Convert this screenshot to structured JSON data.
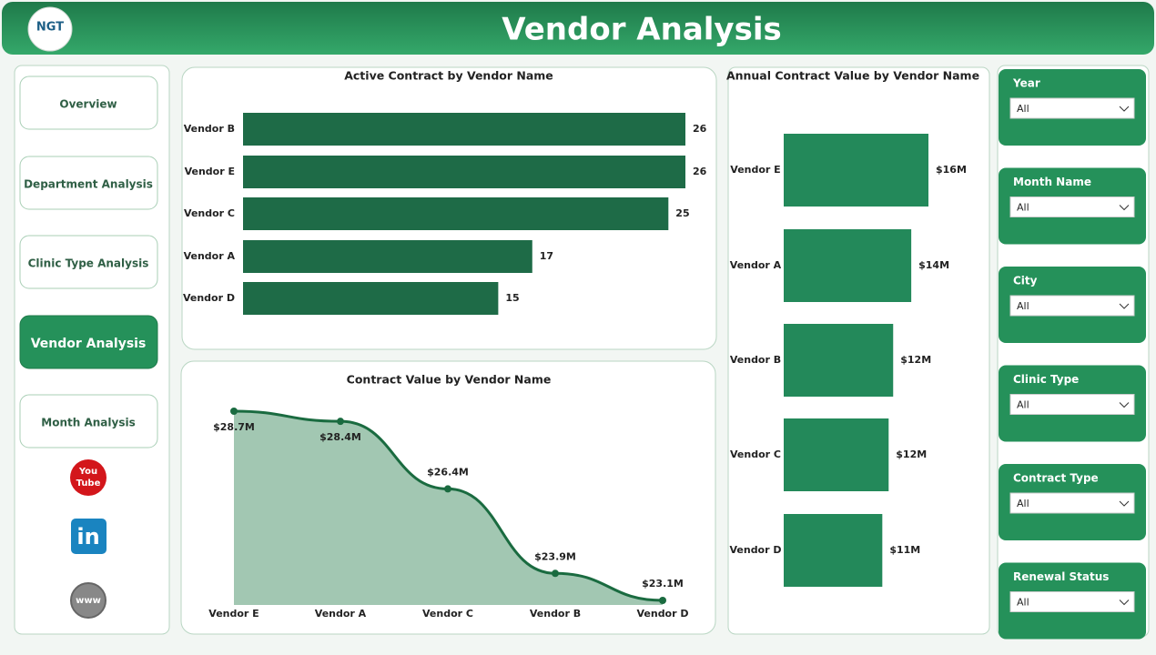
{
  "header": {
    "logo": "NGT",
    "title": "Vendor Analysis"
  },
  "nav": {
    "items": [
      "Overview",
      "Department Analysis",
      "Clinic Type Analysis",
      "Vendor Analysis",
      "Month Analysis"
    ],
    "active": 3,
    "youtube": [
      "You",
      "Tube"
    ],
    "linkedin": "in",
    "web": "www"
  },
  "filters": [
    {
      "label": "Year",
      "value": "All"
    },
    {
      "label": "Month Name",
      "value": "All"
    },
    {
      "label": "City",
      "value": "All"
    },
    {
      "label": "Clinic Type",
      "value": "All"
    },
    {
      "label": "Contract Type",
      "value": "All"
    },
    {
      "label": "Renewal Status",
      "value": "All"
    }
  ],
  "chart_data": [
    {
      "type": "hbar",
      "title": "Active Contract by Vendor Name",
      "categories": [
        "Vendor B",
        "Vendor E",
        "Vendor C",
        "Vendor A",
        "Vendor D"
      ],
      "values": [
        26,
        26,
        25,
        17,
        15
      ],
      "color": "#1e6b47"
    },
    {
      "type": "area",
      "title": "Contract Value by Vendor Name",
      "categories": [
        "Vendor E",
        "Vendor A",
        "Vendor C",
        "Vendor B",
        "Vendor D"
      ],
      "values": [
        28.7,
        28.4,
        26.4,
        23.9,
        23.1
      ],
      "value_labels": [
        "$28.7M",
        "$28.4M",
        "$26.4M",
        "$23.9M",
        "$23.1M"
      ],
      "color": "#1a6b40"
    },
    {
      "type": "hbar",
      "title": "Annual Contract Value by Vendor Name",
      "categories": [
        "Vendor E",
        "Vendor A",
        "Vendor B",
        "Vendor C",
        "Vendor D"
      ],
      "values": [
        16.0,
        14.1,
        12.1,
        11.6,
        10.9
      ],
      "value_labels": [
        "$16M",
        "$14M",
        "$12M",
        "$12M",
        "$11M"
      ],
      "color": "#23895a"
    }
  ]
}
